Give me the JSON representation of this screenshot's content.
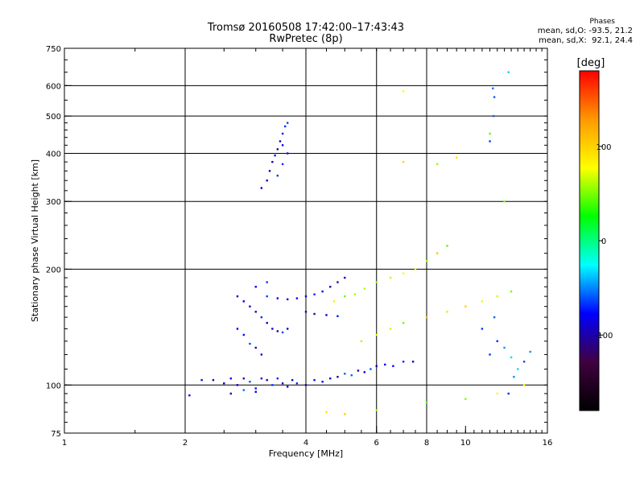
{
  "title": "Tromsø 20160508 17:42:00–17:43:43",
  "subtitle": "RwPretec (8p)",
  "stats": {
    "heading": "Phases",
    "o_mode": "mean, sd,O: -93.5, 21.2",
    "x_mode": "mean, sd,X:  92.1, 24.4"
  },
  "colorbar": {
    "label": "[deg]",
    "ticks": [
      "100",
      "0",
      "-100"
    ],
    "tick_values": [
      100,
      0,
      -100
    ],
    "range": [
      -180,
      180
    ],
    "colors": [
      "#ff0000",
      "#ff9900",
      "#ffff00",
      "#00ff00",
      "#00ffff",
      "#0000ff",
      "#400040",
      "#000000"
    ]
  },
  "chart_data": {
    "type": "scatter",
    "title": "Tromsø 20160508 17:42:00–17:43:43",
    "subtitle": "RwPretec (8p)",
    "xlabel": "Frequency [MHz]",
    "ylabel": "Stationary phase Virtual Height [km]",
    "x_scale": "log",
    "y_scale": "log",
    "xlim": [
      1,
      16
    ],
    "ylim": [
      75,
      750
    ],
    "x_ticks": [
      1,
      2,
      4,
      6,
      8,
      10,
      16
    ],
    "y_ticks": [
      75,
      100,
      200,
      300,
      400,
      500,
      600,
      750
    ],
    "x_gridlines": [
      2,
      4,
      6,
      8
    ],
    "y_gridlines": [
      100,
      200,
      300,
      400,
      500,
      600
    ],
    "color_scale": "phase [deg]",
    "series": [
      {
        "trace": "lower trace ~100 km (O-mode, blue)",
        "phase_mean": -100,
        "points": [
          [
            2.05,
            94
          ],
          [
            2.2,
            103
          ],
          [
            2.35,
            103
          ],
          [
            2.5,
            101
          ],
          [
            2.6,
            104
          ],
          [
            2.7,
            100
          ],
          [
            2.8,
            104
          ],
          [
            2.9,
            102
          ],
          [
            3.0,
            98
          ],
          [
            3.1,
            104
          ],
          [
            3.2,
            103
          ],
          [
            3.3,
            100
          ],
          [
            3.4,
            104
          ],
          [
            3.5,
            101
          ],
          [
            3.6,
            99
          ],
          [
            3.7,
            103
          ],
          [
            3.8,
            101
          ],
          [
            4.0,
            100
          ],
          [
            4.2,
            103
          ],
          [
            4.4,
            102
          ],
          [
            4.6,
            104
          ],
          [
            4.8,
            105
          ],
          [
            5.0,
            107
          ],
          [
            5.2,
            106
          ],
          [
            5.4,
            109
          ],
          [
            5.6,
            108
          ],
          [
            5.8,
            110
          ],
          [
            6.0,
            112
          ],
          [
            6.3,
            113
          ],
          [
            6.6,
            112
          ],
          [
            7.0,
            115
          ],
          [
            7.4,
            115
          ],
          [
            2.6,
            95
          ],
          [
            2.8,
            97
          ],
          [
            3.0,
            96
          ]
        ]
      },
      {
        "trace": "E/F1 trace 140–175 km (blue)",
        "phase_mean": -105,
        "points": [
          [
            2.7,
            170
          ],
          [
            2.8,
            165
          ],
          [
            2.9,
            160
          ],
          [
            3.0,
            155
          ],
          [
            3.1,
            150
          ],
          [
            3.2,
            145
          ],
          [
            3.3,
            140
          ],
          [
            3.4,
            138
          ],
          [
            3.5,
            137
          ],
          [
            3.6,
            140
          ],
          [
            3.2,
            170
          ],
          [
            3.4,
            168
          ],
          [
            3.6,
            167
          ],
          [
            3.8,
            168
          ],
          [
            4.0,
            170
          ],
          [
            4.2,
            172
          ],
          [
            4.4,
            175
          ],
          [
            4.6,
            180
          ],
          [
            4.8,
            185
          ],
          [
            5.0,
            190
          ],
          [
            4.0,
            155
          ],
          [
            4.2,
            153
          ],
          [
            4.5,
            152
          ],
          [
            4.8,
            151
          ],
          [
            2.8,
            135
          ],
          [
            2.9,
            128
          ],
          [
            3.0,
            125
          ],
          [
            3.1,
            120
          ],
          [
            2.7,
            140
          ],
          [
            3.0,
            180
          ],
          [
            3.2,
            185
          ]
        ]
      },
      {
        "trace": "F2 trace 320–480 km (blue)",
        "phase_mean": -110,
        "points": [
          [
            3.1,
            325
          ],
          [
            3.2,
            340
          ],
          [
            3.25,
            360
          ],
          [
            3.3,
            380
          ],
          [
            3.35,
            395
          ],
          [
            3.4,
            410
          ],
          [
            3.45,
            430
          ],
          [
            3.5,
            450
          ],
          [
            3.55,
            470
          ],
          [
            3.6,
            480
          ],
          [
            3.4,
            350
          ],
          [
            3.5,
            375
          ],
          [
            3.6,
            400
          ],
          [
            3.5,
            420
          ]
        ]
      },
      {
        "trace": "X-mode scatter 80–250 km (yellow/red)",
        "phase_mean": 90,
        "points": [
          [
            4.7,
            165
          ],
          [
            5.0,
            170
          ],
          [
            5.3,
            172
          ],
          [
            5.6,
            178
          ],
          [
            6.0,
            185
          ],
          [
            6.5,
            190
          ],
          [
            7.0,
            195
          ],
          [
            7.5,
            200
          ],
          [
            8.0,
            210
          ],
          [
            8.5,
            220
          ],
          [
            9.0,
            230
          ],
          [
            5.5,
            130
          ],
          [
            6.0,
            135
          ],
          [
            6.5,
            140
          ],
          [
            7.0,
            145
          ],
          [
            8.0,
            150
          ],
          [
            9.0,
            155
          ],
          [
            10.0,
            160
          ],
          [
            11.0,
            165
          ],
          [
            12.0,
            170
          ],
          [
            13.0,
            175
          ],
          [
            4.5,
            85
          ],
          [
            5.0,
            84
          ],
          [
            6.0,
            86
          ],
          [
            8.0,
            90
          ],
          [
            10.0,
            92
          ],
          [
            12.0,
            95
          ],
          [
            14.0,
            100
          ],
          [
            7.0,
            580
          ],
          [
            7.0,
            380
          ],
          [
            8.5,
            375
          ],
          [
            9.5,
            390
          ],
          [
            12.5,
            300
          ],
          [
            11.5,
            450
          ]
        ]
      },
      {
        "trace": "high-frequency scatter 11–16 MHz (mixed)",
        "phase_mean": -60,
        "points": [
          [
            11.5,
            120
          ],
          [
            12.0,
            130
          ],
          [
            12.5,
            125
          ],
          [
            13.0,
            118
          ],
          [
            13.5,
            110
          ],
          [
            14.0,
            115
          ],
          [
            14.5,
            122
          ],
          [
            11.0,
            140
          ],
          [
            11.8,
            150
          ],
          [
            13.2,
            105
          ],
          [
            12.8,
            95
          ],
          [
            11.7,
            590
          ],
          [
            11.8,
            560
          ],
          [
            11.75,
            500
          ],
          [
            12.8,
            650
          ],
          [
            11.5,
            430
          ]
        ]
      }
    ]
  }
}
